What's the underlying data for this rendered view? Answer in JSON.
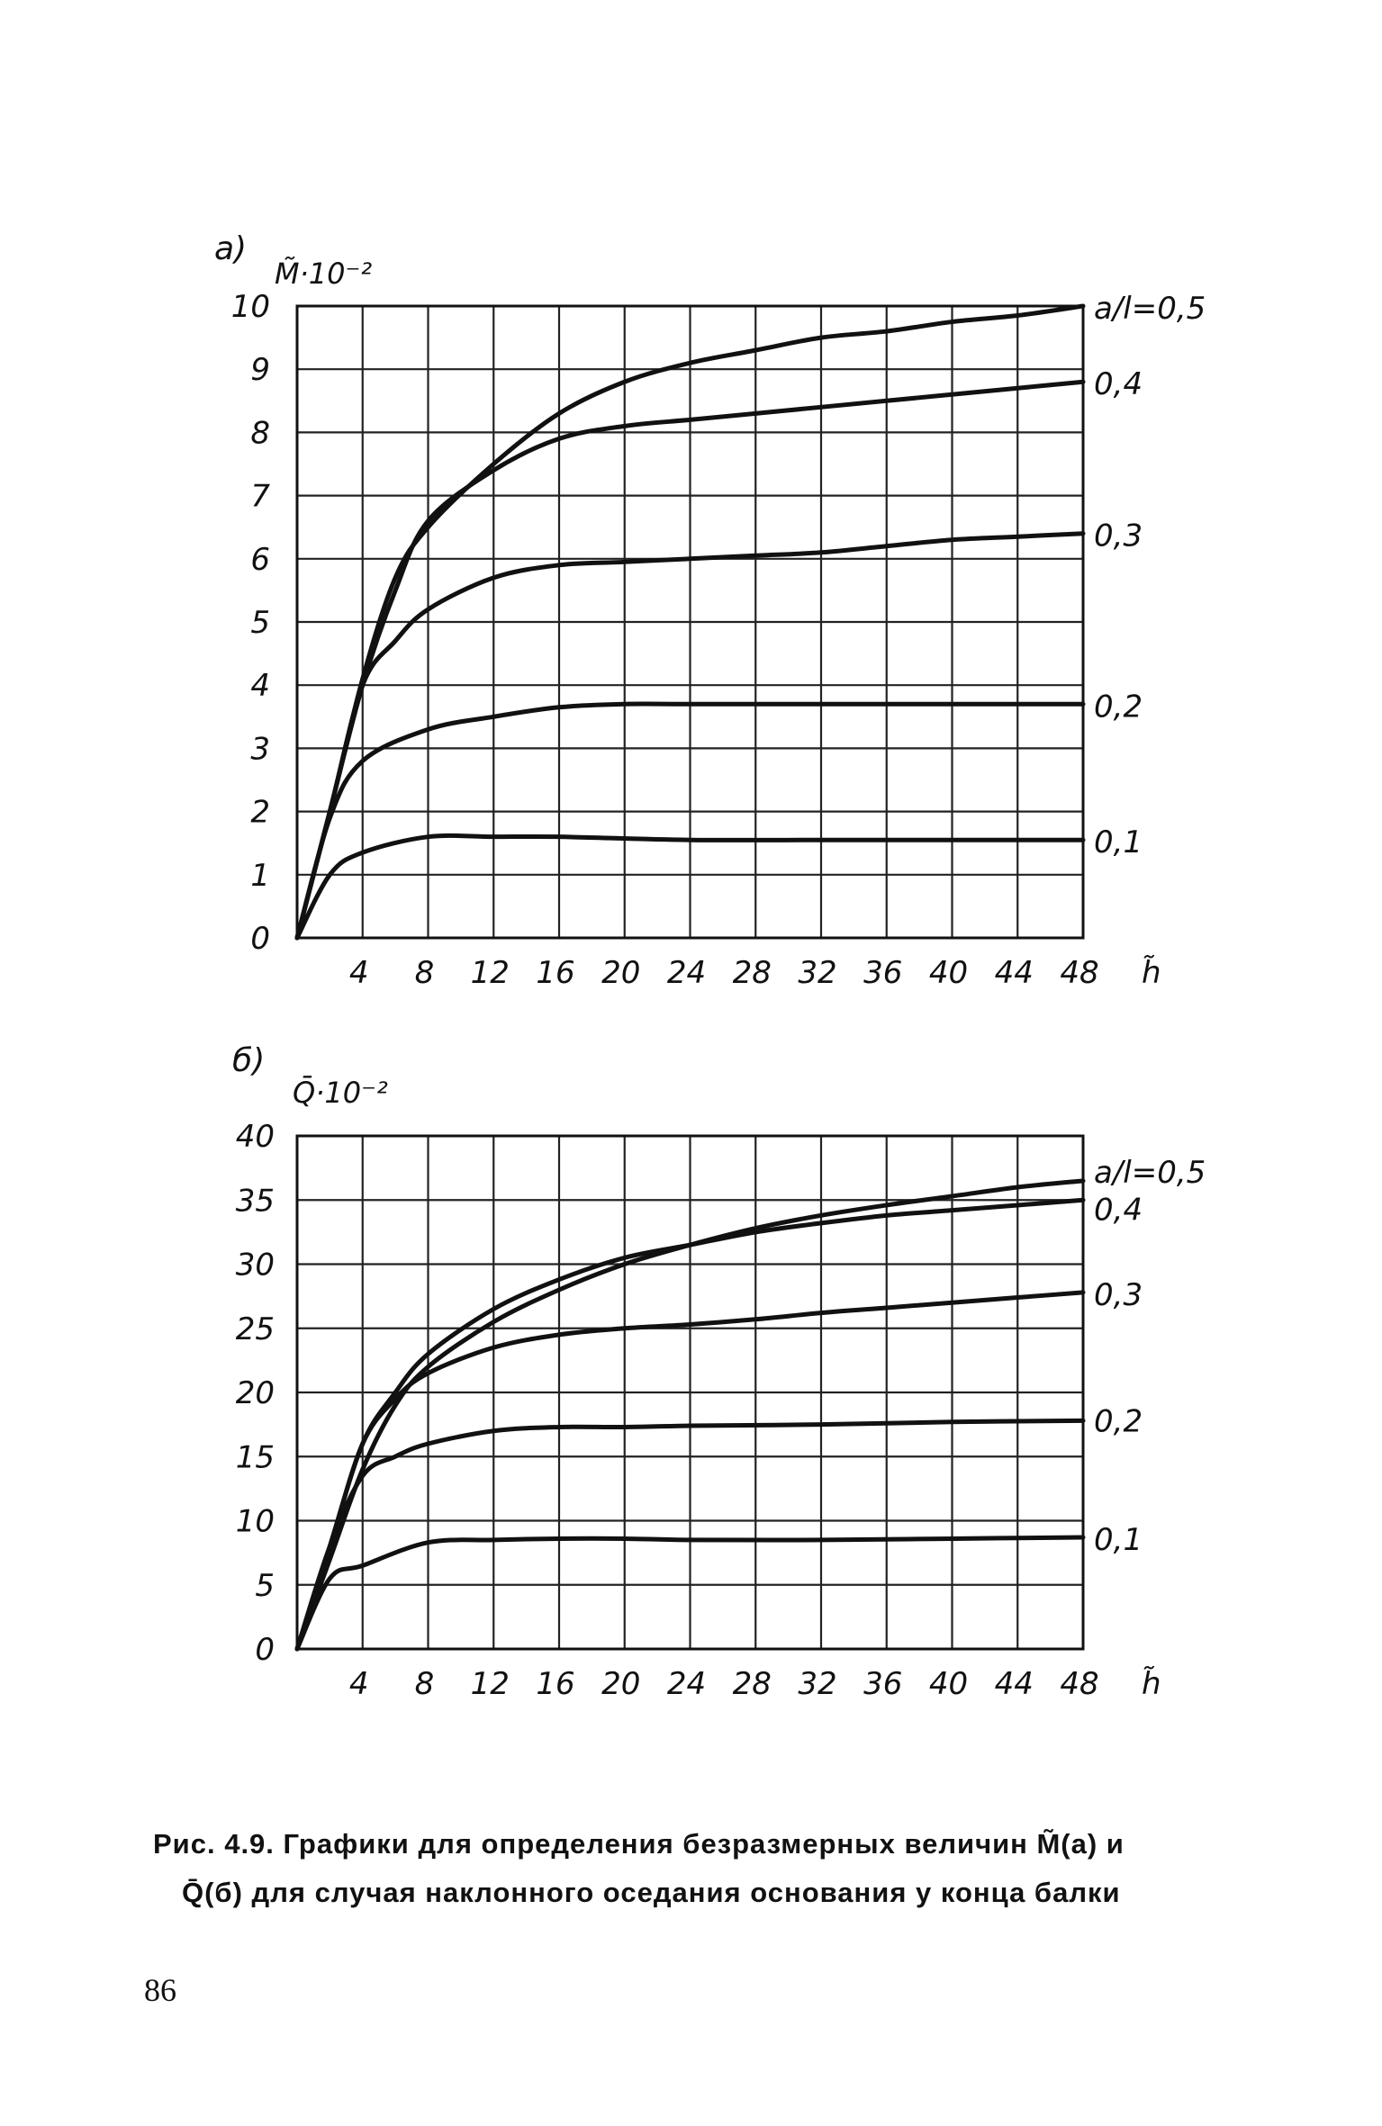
{
  "chart_data": [
    {
      "type": "line",
      "panel_label": "а)",
      "ylabel": "M̃·10⁻²",
      "xlabel": "h̃",
      "xlim": [
        0,
        48
      ],
      "ylim": [
        0,
        10
      ],
      "xticks": [
        "4",
        "8",
        "12",
        "16",
        "20",
        "24",
        "28",
        "32",
        "36",
        "40",
        "44",
        "48"
      ],
      "yticks": [
        "0",
        "1",
        "2",
        "3",
        "4",
        "5",
        "6",
        "7",
        "8",
        "9",
        "10"
      ],
      "grid": true,
      "series_label_prefix": "a/l=",
      "series": [
        {
          "name": "0,5",
          "points": [
            [
              0,
              0
            ],
            [
              2,
              2
            ],
            [
              4,
              4.1
            ],
            [
              6,
              5.7
            ],
            [
              8,
              6.5
            ],
            [
              12,
              7.5
            ],
            [
              16,
              8.3
            ],
            [
              20,
              8.8
            ],
            [
              24,
              9.1
            ],
            [
              28,
              9.3
            ],
            [
              32,
              9.5
            ],
            [
              36,
              9.6
            ],
            [
              40,
              9.75
            ],
            [
              44,
              9.85
            ],
            [
              48,
              10.0
            ]
          ]
        },
        {
          "name": "0,4",
          "points": [
            [
              0,
              0
            ],
            [
              2,
              2
            ],
            [
              4,
              4.0
            ],
            [
              6,
              5.5
            ],
            [
              8,
              6.6
            ],
            [
              12,
              7.4
            ],
            [
              16,
              7.9
            ],
            [
              20,
              8.1
            ],
            [
              24,
              8.2
            ],
            [
              28,
              8.3
            ],
            [
              32,
              8.4
            ],
            [
              36,
              8.5
            ],
            [
              40,
              8.6
            ],
            [
              44,
              8.7
            ],
            [
              48,
              8.8
            ]
          ]
        },
        {
          "name": "0,3",
          "points": [
            [
              0,
              0
            ],
            [
              2,
              2
            ],
            [
              4,
              4.0
            ],
            [
              6,
              4.7
            ],
            [
              8,
              5.2
            ],
            [
              12,
              5.7
            ],
            [
              16,
              5.9
            ],
            [
              20,
              5.95
            ],
            [
              24,
              6.0
            ],
            [
              28,
              6.05
            ],
            [
              32,
              6.1
            ],
            [
              36,
              6.2
            ],
            [
              40,
              6.3
            ],
            [
              44,
              6.35
            ],
            [
              48,
              6.4
            ]
          ]
        },
        {
          "name": "0,2",
          "points": [
            [
              0,
              0
            ],
            [
              2,
              1.9
            ],
            [
              4,
              2.8
            ],
            [
              8,
              3.3
            ],
            [
              12,
              3.5
            ],
            [
              16,
              3.65
            ],
            [
              20,
              3.7
            ],
            [
              24,
              3.7
            ],
            [
              32,
              3.7
            ],
            [
              40,
              3.7
            ],
            [
              48,
              3.7
            ]
          ]
        },
        {
          "name": "0,1",
          "points": [
            [
              0,
              0
            ],
            [
              2,
              1.0
            ],
            [
              4,
              1.35
            ],
            [
              8,
              1.6
            ],
            [
              12,
              1.6
            ],
            [
              16,
              1.6
            ],
            [
              24,
              1.55
            ],
            [
              32,
              1.55
            ],
            [
              40,
              1.55
            ],
            [
              48,
              1.55
            ]
          ]
        }
      ]
    },
    {
      "type": "line",
      "panel_label": "б)",
      "ylabel": "Q̄·10⁻²",
      "xlabel": "h̃",
      "xlim": [
        0,
        48
      ],
      "ylim": [
        0,
        40
      ],
      "xticks": [
        "4",
        "8",
        "12",
        "16",
        "20",
        "24",
        "28",
        "32",
        "36",
        "40",
        "44",
        "48"
      ],
      "yticks": [
        "0",
        "5",
        "10",
        "15",
        "20",
        "25",
        "30",
        "35",
        "40"
      ],
      "grid": true,
      "series_label_prefix": "a/l=",
      "series": [
        {
          "name": "0,5",
          "points": [
            [
              0,
              0
            ],
            [
              2,
              7
            ],
            [
              4,
              14
            ],
            [
              6,
              19
            ],
            [
              8,
              22
            ],
            [
              12,
              25.5
            ],
            [
              16,
              28
            ],
            [
              20,
              30
            ],
            [
              24,
              31.5
            ],
            [
              28,
              32.8
            ],
            [
              32,
              33.8
            ],
            [
              36,
              34.6
            ],
            [
              40,
              35.3
            ],
            [
              44,
              36
            ],
            [
              48,
              36.5
            ]
          ]
        },
        {
          "name": "0,4",
          "points": [
            [
              0,
              0
            ],
            [
              2,
              8
            ],
            [
              4,
              16
            ],
            [
              6,
              20
            ],
            [
              8,
              23
            ],
            [
              12,
              26.5
            ],
            [
              16,
              28.8
            ],
            [
              20,
              30.5
            ],
            [
              24,
              31.5
            ],
            [
              28,
              32.5
            ],
            [
              32,
              33.2
            ],
            [
              36,
              33.8
            ],
            [
              40,
              34.2
            ],
            [
              44,
              34.6
            ],
            [
              48,
              35
            ]
          ]
        },
        {
          "name": "0,3",
          "points": [
            [
              0,
              0
            ],
            [
              2,
              8
            ],
            [
              4,
              16
            ],
            [
              6,
              19.5
            ],
            [
              8,
              21.5
            ],
            [
              12,
              23.5
            ],
            [
              16,
              24.5
            ],
            [
              20,
              25
            ],
            [
              24,
              25.3
            ],
            [
              28,
              25.7
            ],
            [
              32,
              26.2
            ],
            [
              36,
              26.6
            ],
            [
              40,
              27
            ],
            [
              44,
              27.4
            ],
            [
              48,
              27.8
            ]
          ]
        },
        {
          "name": "0,2",
          "points": [
            [
              0,
              0
            ],
            [
              2,
              8
            ],
            [
              4,
              13.5
            ],
            [
              6,
              15
            ],
            [
              8,
              16
            ],
            [
              12,
              17
            ],
            [
              16,
              17.3
            ],
            [
              20,
              17.3
            ],
            [
              24,
              17.4
            ],
            [
              32,
              17.5
            ],
            [
              40,
              17.7
            ],
            [
              48,
              17.8
            ]
          ]
        },
        {
          "name": "0,1",
          "points": [
            [
              0,
              0
            ],
            [
              2,
              5.5
            ],
            [
              4,
              6.5
            ],
            [
              8,
              8.3
            ],
            [
              12,
              8.5
            ],
            [
              16,
              8.6
            ],
            [
              20,
              8.6
            ],
            [
              24,
              8.5
            ],
            [
              32,
              8.5
            ],
            [
              40,
              8.6
            ],
            [
              48,
              8.7
            ]
          ]
        }
      ]
    }
  ],
  "caption": {
    "line1": "Рис. 4.9. Графики для определения безразмерных величин M̃(a) и",
    "line2": "Q̄(б) для случая наклонного оседания основания у конца балки"
  },
  "page_number": "86"
}
